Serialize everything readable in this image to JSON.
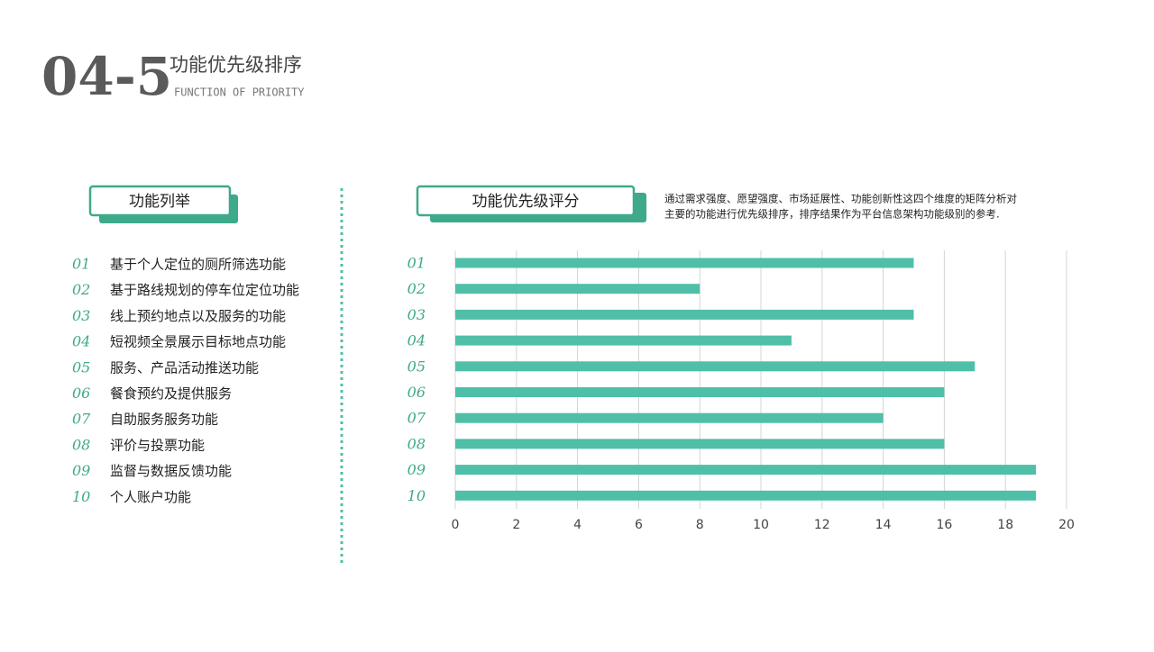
{
  "header": {
    "number": "04-5",
    "title": "功能优先级排序",
    "subtitle": "FUNCTION OF PRIORITY"
  },
  "feature_list": {
    "label": "功能列举",
    "items": [
      {
        "number": "01",
        "text": "基于个人定位的厕所筛选功能"
      },
      {
        "number": "02",
        "text": "基于路线规划的停车位定位功能"
      },
      {
        "number": "03",
        "text": "线上预约地点以及服务的功能"
      },
      {
        "number": "04",
        "text": "短视频全景展示目标地点功能"
      },
      {
        "number": "05",
        "text": "服务、产品活动推送功能"
      },
      {
        "number": "06",
        "text": "餐食预约及提供服务"
      },
      {
        "number": "07",
        "text": "自助服务服务功能"
      },
      {
        "number": "08",
        "text": "评价与投票功能"
      },
      {
        "number": "09",
        "text": "监督与数据反馈功能"
      },
      {
        "number": "10",
        "text": "个人账户功能"
      }
    ]
  },
  "score_panel": {
    "label": "功能优先级评分",
    "description": [
      "通过需求强度、愿望强度、市场延展性、功能创新性这四个维度的矩阵分析对",
      "主要的功能进行优先级排序，排序结果作为平台信息架构功能级别的参考."
    ]
  },
  "chart_data": {
    "type": "hbar",
    "categories": [
      "01",
      "02",
      "03",
      "04",
      "05",
      "06",
      "07",
      "08",
      "09",
      "10"
    ],
    "values": [
      15,
      8,
      15,
      11,
      17,
      16,
      14,
      16,
      19,
      19
    ],
    "color": "#4fbfa8",
    "xlim": [
      0,
      20
    ],
    "xticks": [
      0,
      2,
      4,
      6,
      8,
      10,
      12,
      14,
      16,
      18,
      20
    ],
    "grid": true
  }
}
